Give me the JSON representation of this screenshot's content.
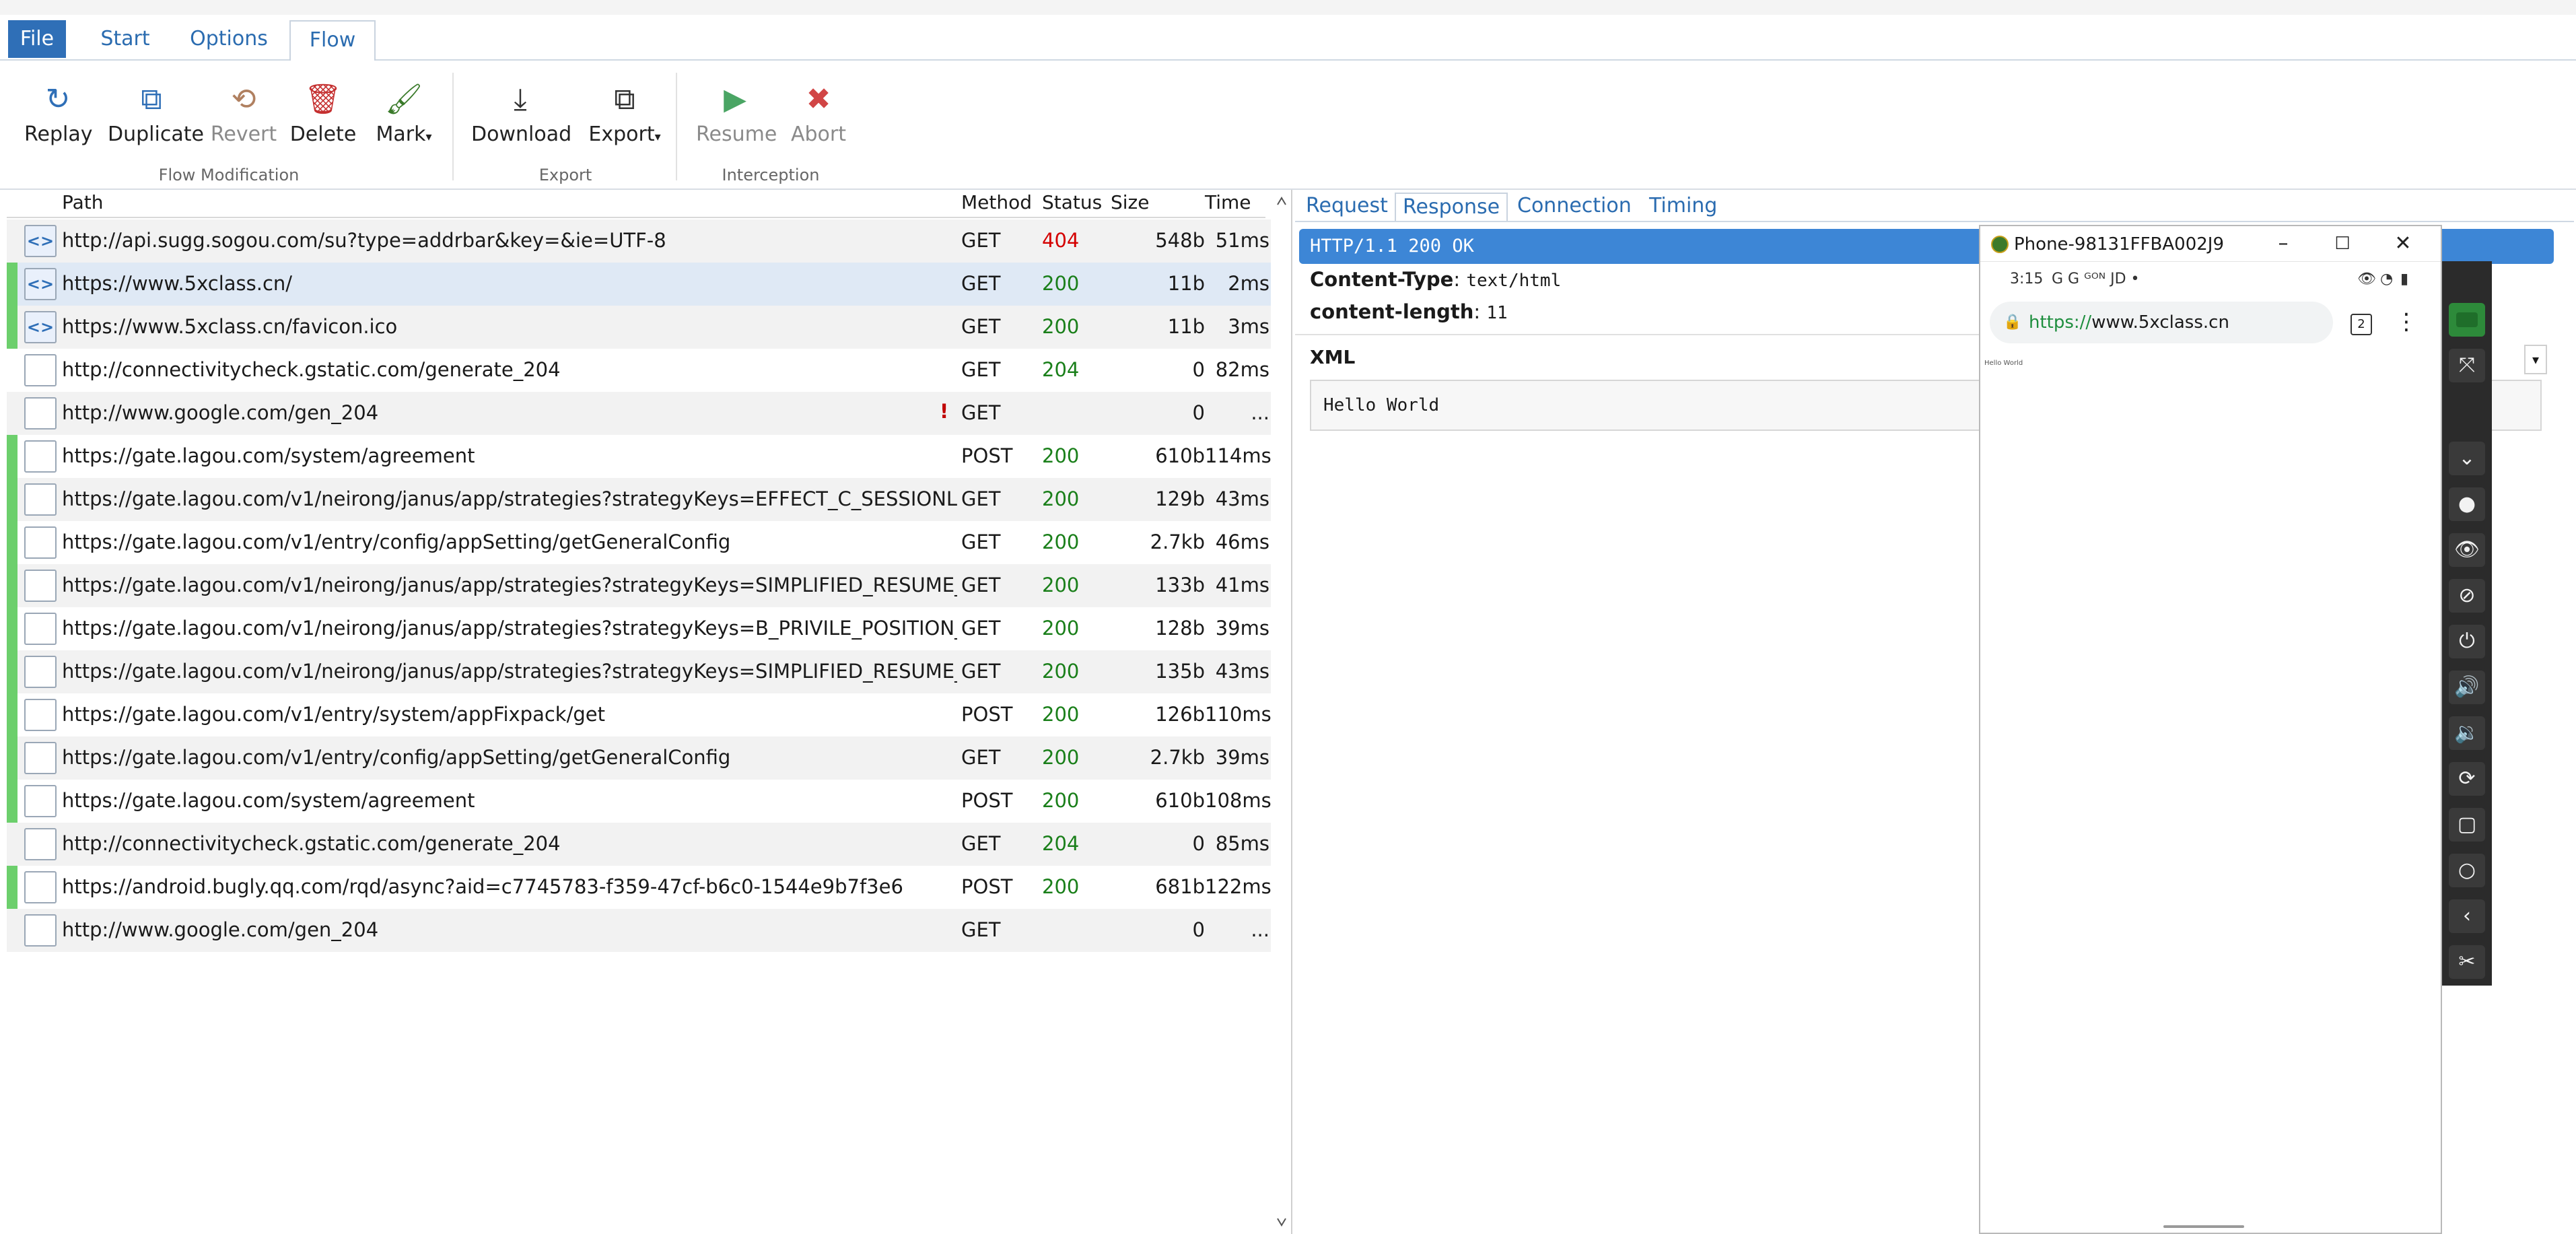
{
  "menu": {
    "file": "File",
    "start": "Start",
    "options": "Options",
    "flow": "Flow"
  },
  "ribbon": {
    "replay": "Replay",
    "duplicate": "Duplicate",
    "revert": "Revert",
    "delete": "Delete",
    "mark": "Mark",
    "download": "Download",
    "export": "Export",
    "resume": "Resume",
    "abort": "Abort",
    "group_flow_modification": "Flow Modification",
    "group_export": "Export",
    "group_interception": "Interception",
    "dropdown_caret": "▾"
  },
  "list": {
    "columns": {
      "path": "Path",
      "method": "Method",
      "status": "Status",
      "size": "Size",
      "time": "Time"
    },
    "rows": [
      {
        "path": "http://api.sugg.sogou.com/su?type=addrbar&key=&ie=UTF-8",
        "method": "GET",
        "status": "404",
        "size": "548b",
        "time": "51ms",
        "marker": false,
        "icon": "<>",
        "warn": ""
      },
      {
        "path": "https://www.5xclass.cn/",
        "method": "GET",
        "status": "200",
        "size": "11b",
        "time": "2ms",
        "marker": true,
        "icon": "<>",
        "warn": ""
      },
      {
        "path": "https://www.5xclass.cn/favicon.ico",
        "method": "GET",
        "status": "200",
        "size": "11b",
        "time": "3ms",
        "marker": true,
        "icon": "<>",
        "warn": ""
      },
      {
        "path": "http://connectivitycheck.gstatic.com/generate_204",
        "method": "GET",
        "status": "204",
        "size": "0",
        "time": "82ms",
        "marker": false,
        "icon": "",
        "warn": ""
      },
      {
        "path": "http://www.google.com/gen_204",
        "method": "GET",
        "status": "",
        "size": "0",
        "time": "...",
        "marker": false,
        "icon": "",
        "warn": "!"
      },
      {
        "path": "https://gate.lagou.com/system/agreement",
        "method": "POST",
        "status": "200",
        "size": "610b",
        "time": "114ms",
        "marker": true,
        "icon": "",
        "warn": ""
      },
      {
        "path": "https://gate.lagou.com/v1/neirong/janus/app/strategies?strategyKeys=EFFECT_C_SESSIONLIST_S…",
        "method": "GET",
        "status": "200",
        "size": "129b",
        "time": "43ms",
        "marker": true,
        "icon": "",
        "warn": ""
      },
      {
        "path": "https://gate.lagou.com/v1/entry/config/appSetting/getGeneralConfig",
        "method": "GET",
        "status": "200",
        "size": "2.7kb",
        "time": "46ms",
        "marker": true,
        "icon": "",
        "warn": ""
      },
      {
        "path": "https://gate.lagou.com/v1/neirong/janus/app/strategies?strategyKeys=SIMPLIFIED_RESUME_PRO…",
        "method": "GET",
        "status": "200",
        "size": "133b",
        "time": "41ms",
        "marker": true,
        "icon": "",
        "warn": ""
      },
      {
        "path": "https://gate.lagou.com/v1/neirong/janus/app/strategies?strategyKeys=B_PRIVILE_POSITION_EXTE…",
        "method": "GET",
        "status": "200",
        "size": "128b",
        "time": "39ms",
        "marker": true,
        "icon": "",
        "warn": ""
      },
      {
        "path": "https://gate.lagou.com/v1/neirong/janus/app/strategies?strategyKeys=SIMPLIFIED_RESUME_PRO…",
        "method": "GET",
        "status": "200",
        "size": "135b",
        "time": "43ms",
        "marker": true,
        "icon": "",
        "warn": ""
      },
      {
        "path": "https://gate.lagou.com/v1/entry/system/appFixpack/get",
        "method": "POST",
        "status": "200",
        "size": "126b",
        "time": "110ms",
        "marker": true,
        "icon": "",
        "warn": ""
      },
      {
        "path": "https://gate.lagou.com/v1/entry/config/appSetting/getGeneralConfig",
        "method": "GET",
        "status": "200",
        "size": "2.7kb",
        "time": "39ms",
        "marker": true,
        "icon": "",
        "warn": ""
      },
      {
        "path": "https://gate.lagou.com/system/agreement",
        "method": "POST",
        "status": "200",
        "size": "610b",
        "time": "108ms",
        "marker": true,
        "icon": "",
        "warn": ""
      },
      {
        "path": "http://connectivitycheck.gstatic.com/generate_204",
        "method": "GET",
        "status": "204",
        "size": "0",
        "time": "85ms",
        "marker": false,
        "icon": "",
        "warn": ""
      },
      {
        "path": "https://android.bugly.qq.com/rqd/async?aid=c7745783-f359-47cf-b6c0-1544e9b7f3e6",
        "method": "POST",
        "status": "200",
        "size": "681b",
        "time": "122ms",
        "marker": true,
        "icon": "",
        "warn": ""
      },
      {
        "path": "http://www.google.com/gen_204",
        "method": "GET",
        "status": "",
        "size": "0",
        "time": "...",
        "marker": false,
        "icon": "",
        "warn": ""
      }
    ],
    "selected_index": 1
  },
  "detail": {
    "tabs": {
      "request": "Request",
      "response": "Response",
      "connection": "Connection",
      "timing": "Timing"
    },
    "status_line": "HTTP/1.1 200 OK",
    "headers": [
      {
        "name": "Content-Type",
        "value": "text/html"
      },
      {
        "name": "content-length",
        "value": "11"
      }
    ],
    "body_format": "XML",
    "body": "Hello World"
  },
  "phone": {
    "title": "Phone-98131FFBA002J9",
    "status_time": "3:15",
    "status_apps": "G  G  ᴳᴼᴺ  JD  •",
    "url_scheme": "https://",
    "url_host": "www.5xclass.cn",
    "tab_count": "2",
    "page_text": "Hello World"
  },
  "colors": {
    "accent": "#2f6fb7",
    "status_ok": "#1a7f1a",
    "status_error": "#d40000",
    "marker_green": "#6ccf6c",
    "status_bar_blue": "#3d86d6"
  }
}
